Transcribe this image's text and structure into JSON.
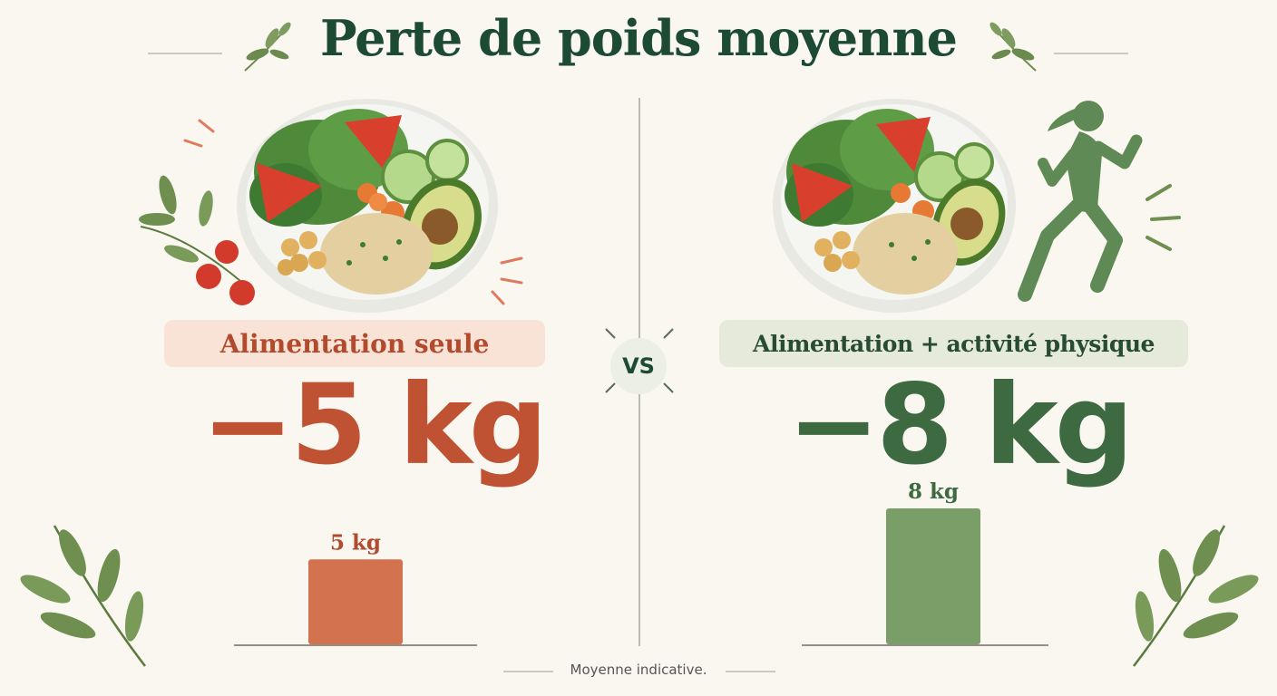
{
  "title": "Perte de poids moyenne",
  "vs_label": "VS",
  "footnote": "Moyenne indicative.",
  "left": {
    "label": "Alimentation seule",
    "big_value": "−5 kg"
  },
  "right": {
    "label": "Alimentation + activité physique",
    "big_value": "−8 kg"
  },
  "colors": {
    "left": "#d2724f",
    "right": "#7a9e67",
    "left_text": "#b24a2d",
    "right_text": "#3d6a40",
    "title": "#1d4a32"
  },
  "chart_data": {
    "type": "bar",
    "categories": [
      "Alimentation seule",
      "Alimentation + activité physique"
    ],
    "values": [
      5,
      8
    ],
    "data_labels": [
      "5 kg",
      "8 kg"
    ],
    "title": "Perte de poids moyenne",
    "xlabel": "",
    "ylabel": "",
    "unit": "kg",
    "ylim": [
      0,
      8
    ]
  }
}
